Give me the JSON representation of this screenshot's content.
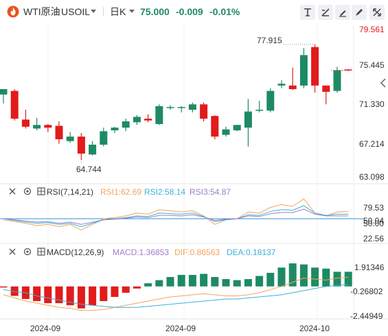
{
  "header": {
    "symbol_name": "WTI原油",
    "symbol_code": "USOIL",
    "interval": "日K",
    "price": "75.000",
    "change": "-0.009",
    "change_pct": "-0.01%",
    "colors": {
      "up": "#1e8a64",
      "down": "#e21b1b",
      "down_text": "#1e8a64"
    }
  },
  "toolbar_icons": [
    "indicator-icon",
    "compare-icon",
    "draw-icon",
    "pen-icon",
    "fullscreen-icon",
    "close-icon"
  ],
  "price_axis": {
    "ticks": [
      "79.561",
      "75.445",
      "71.330",
      "67.214",
      "63.098"
    ],
    "top_tick_color": "#e21b1b"
  },
  "price_annotations": {
    "high": "77.915",
    "low": "64.744"
  },
  "rsi": {
    "name": "RSI(7,14,21)",
    "rsi1_label": "RSI1:62.69",
    "rsi2_label": "RSI2:58.14",
    "rsi3_label": "RSI3:54.87",
    "colors": {
      "rsi1": "#f5a35c",
      "rsi2": "#3bb0d8",
      "rsi3": "#9c7fc8"
    },
    "axis": [
      "79.53",
      "50.04",
      "50.00",
      "22.56"
    ]
  },
  "macd": {
    "name": "MACD(12,26,9)",
    "macd_label": "MACD:1.36853",
    "dif_label": "DIF:0.86563",
    "dea_label": "DEA:0.18137",
    "colors": {
      "macd": "#9c7fc8",
      "dif": "#f5a35c",
      "dea": "#3bb0d8"
    },
    "axis": [
      "1.91346",
      "-0.26802",
      "-2.44949"
    ]
  },
  "time_axis": [
    "2024-09",
    "2024-09",
    "2024-10"
  ],
  "chart_data": [
    {
      "type": "candlestick",
      "title": "",
      "ylim": [
        63.098,
        79.561
      ],
      "candles": [
        {
          "o": 72.3,
          "h": 72.8,
          "l": 71.3,
          "c": 72.9
        },
        {
          "o": 72.7,
          "h": 72.9,
          "l": 69.4,
          "c": 69.6
        },
        {
          "o": 69.5,
          "h": 70.6,
          "l": 68.5,
          "c": 68.7
        },
        {
          "o": 68.5,
          "h": 69.7,
          "l": 68.3,
          "c": 68.9
        },
        {
          "o": 68.9,
          "h": 69.0,
          "l": 68.1,
          "c": 68.6
        },
        {
          "o": 68.8,
          "h": 69.3,
          "l": 66.8,
          "c": 67.3
        },
        {
          "o": 67.1,
          "h": 68.1,
          "l": 66.9,
          "c": 67.6
        },
        {
          "o": 67.6,
          "h": 68.0,
          "l": 65.0,
          "c": 65.7
        },
        {
          "o": 65.6,
          "h": 67.1,
          "l": 65.5,
          "c": 66.7
        },
        {
          "o": 66.7,
          "h": 68.6,
          "l": 66.5,
          "c": 68.2
        },
        {
          "o": 68.3,
          "h": 68.7,
          "l": 68.0,
          "c": 68.6
        },
        {
          "o": 68.6,
          "h": 69.6,
          "l": 68.2,
          "c": 69.3
        },
        {
          "o": 69.2,
          "h": 70.0,
          "l": 68.9,
          "c": 69.8
        },
        {
          "o": 69.6,
          "h": 70.1,
          "l": 69.2,
          "c": 69.4
        },
        {
          "o": 69.0,
          "h": 71.2,
          "l": 68.9,
          "c": 71.0
        },
        {
          "o": 70.9,
          "h": 71.1,
          "l": 70.6,
          "c": 70.9
        },
        {
          "o": 70.8,
          "h": 71.0,
          "l": 70.3,
          "c": 70.9
        },
        {
          "o": 70.6,
          "h": 71.4,
          "l": 70.3,
          "c": 71.2
        },
        {
          "o": 71.2,
          "h": 71.4,
          "l": 69.3,
          "c": 69.6
        },
        {
          "o": 69.9,
          "h": 70.0,
          "l": 67.3,
          "c": 67.6
        },
        {
          "o": 67.8,
          "h": 68.7,
          "l": 67.6,
          "c": 68.4
        },
        {
          "o": 68.3,
          "h": 68.9,
          "l": 68.2,
          "c": 68.9
        },
        {
          "o": 68.6,
          "h": 71.8,
          "l": 66.5,
          "c": 70.4
        },
        {
          "o": 70.5,
          "h": 71.6,
          "l": 70.3,
          "c": 70.6
        },
        {
          "o": 70.5,
          "h": 73.0,
          "l": 70.3,
          "c": 72.7
        },
        {
          "o": 73.3,
          "h": 73.9,
          "l": 73.0,
          "c": 73.5
        },
        {
          "o": 73.3,
          "h": 75.3,
          "l": 72.8,
          "c": 72.9
        },
        {
          "o": 73.3,
          "h": 77.5,
          "l": 73.0,
          "c": 76.7
        },
        {
          "o": 77.6,
          "h": 77.9,
          "l": 72.5,
          "c": 73.3
        },
        {
          "o": 73.3,
          "h": 73.3,
          "l": 71.2,
          "c": 72.6
        },
        {
          "o": 72.7,
          "h": 75.4,
          "l": 72.5,
          "c": 75.0
        },
        {
          "o": 75.1,
          "h": 75.1,
          "l": 74.9,
          "c": 75.0
        }
      ]
    },
    {
      "type": "line",
      "title": "RSI(7,14,21)",
      "ylim": [
        10,
        90
      ],
      "series": [
        {
          "name": "RSI1",
          "values": [
            48,
            45,
            42,
            38,
            40,
            36,
            40,
            30,
            40,
            50,
            52,
            55,
            60,
            58,
            66,
            64,
            62,
            64,
            55,
            40,
            48,
            50,
            62,
            60,
            70,
            75,
            72,
            85,
            60,
            55,
            62,
            63
          ]
        },
        {
          "name": "RSI2",
          "values": [
            50,
            47,
            44,
            42,
            43,
            40,
            42,
            36,
            42,
            48,
            50,
            52,
            55,
            54,
            60,
            59,
            58,
            60,
            54,
            45,
            48,
            50,
            57,
            56,
            63,
            66,
            65,
            73,
            60,
            56,
            58,
            58
          ]
        },
        {
          "name": "RSI3",
          "values": [
            50,
            48,
            46,
            44,
            45,
            42,
            44,
            40,
            44,
            48,
            49,
            51,
            53,
            52,
            56,
            56,
            55,
            57,
            53,
            47,
            49,
            50,
            55,
            54,
            59,
            61,
            61,
            67,
            58,
            55,
            55,
            55
          ]
        }
      ]
    },
    {
      "type": "bar+line",
      "title": "MACD(12,26,9)",
      "ylim": [
        -2.9,
        2.6
      ],
      "series": [
        {
          "name": "MACD",
          "values": [
            -0.1,
            -0.9,
            -1.2,
            -1.4,
            -1.6,
            -1.6,
            -1.8,
            -2.1,
            -1.8,
            -1.4,
            -1.0,
            -0.6,
            -0.2,
            0.3,
            0.6,
            0.9,
            1.1,
            1.1,
            1.2,
            0.9,
            0.7,
            0.6,
            0.7,
            1.0,
            1.3,
            1.8,
            2.2,
            2.1,
            1.8,
            1.7,
            1.4,
            1.4
          ]
        },
        {
          "name": "DIF",
          "values": [
            -0.8,
            -1.1,
            -1.4,
            -1.6,
            -1.8,
            -2.0,
            -2.1,
            -2.3,
            -2.3,
            -2.2,
            -2.0,
            -1.8,
            -1.6,
            -1.4,
            -1.2,
            -1.0,
            -0.9,
            -0.8,
            -0.7,
            -0.8,
            -0.9,
            -0.9,
            -0.8,
            -0.6,
            -0.3,
            0.0,
            0.4,
            0.8,
            0.7,
            0.6,
            0.8,
            0.87
          ]
        },
        {
          "name": "DEA",
          "values": [
            -0.3,
            -0.5,
            -0.6,
            -0.9,
            -1.1,
            -1.3,
            -1.5,
            -1.7,
            -1.8,
            -1.9,
            -2.0,
            -2.0,
            -2.0,
            -1.9,
            -1.8,
            -1.7,
            -1.6,
            -1.5,
            -1.4,
            -1.3,
            -1.2,
            -1.2,
            -1.1,
            -1.0,
            -0.9,
            -0.8,
            -0.6,
            -0.4,
            -0.2,
            0.0,
            0.1,
            0.18
          ]
        }
      ]
    }
  ]
}
